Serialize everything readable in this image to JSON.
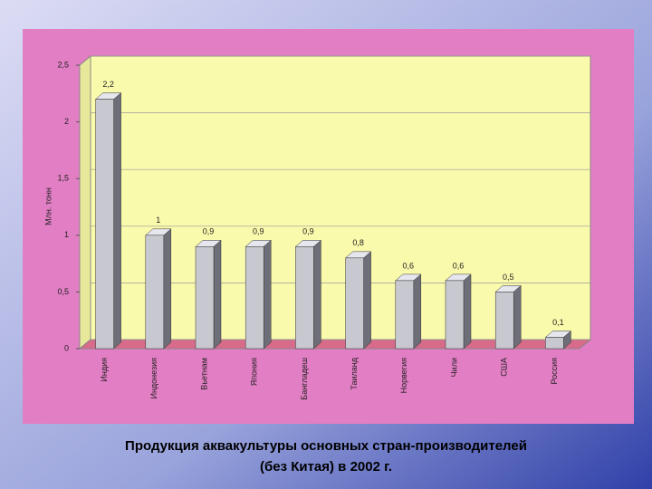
{
  "chart_data": {
    "type": "bar3d",
    "caption": [
      "Продукция аквакультуры основных стран-производителей",
      "(без Китая) в 2002 г."
    ],
    "y_label": "Млн. тонн",
    "categories": [
      "Индия",
      "Индонезия",
      "Вьетнам",
      "Япония",
      "Бангладеш",
      "Таиланд",
      "Норвегия",
      "Чили",
      "США",
      "Россия"
    ],
    "values": [
      2.2,
      1,
      0.9,
      0.9,
      0.9,
      0.8,
      0.6,
      0.6,
      0.5,
      0.1
    ],
    "value_labels": [
      "2,2",
      "1",
      "0,9",
      "0,9",
      "0,9",
      "0,8",
      "0,6",
      "0,6",
      "0,5",
      "0,1"
    ],
    "color": "#c8c8d0",
    "ylim": [
      0,
      2.5
    ],
    "yticks": [
      0,
      {
        "value": 0.5,
        "label": "0,5"
      },
      1,
      {
        "value": 1.5,
        "label": "1,5"
      },
      2,
      {
        "value": 2.5,
        "label": "2,5"
      }
    ],
    "grid": true
  }
}
